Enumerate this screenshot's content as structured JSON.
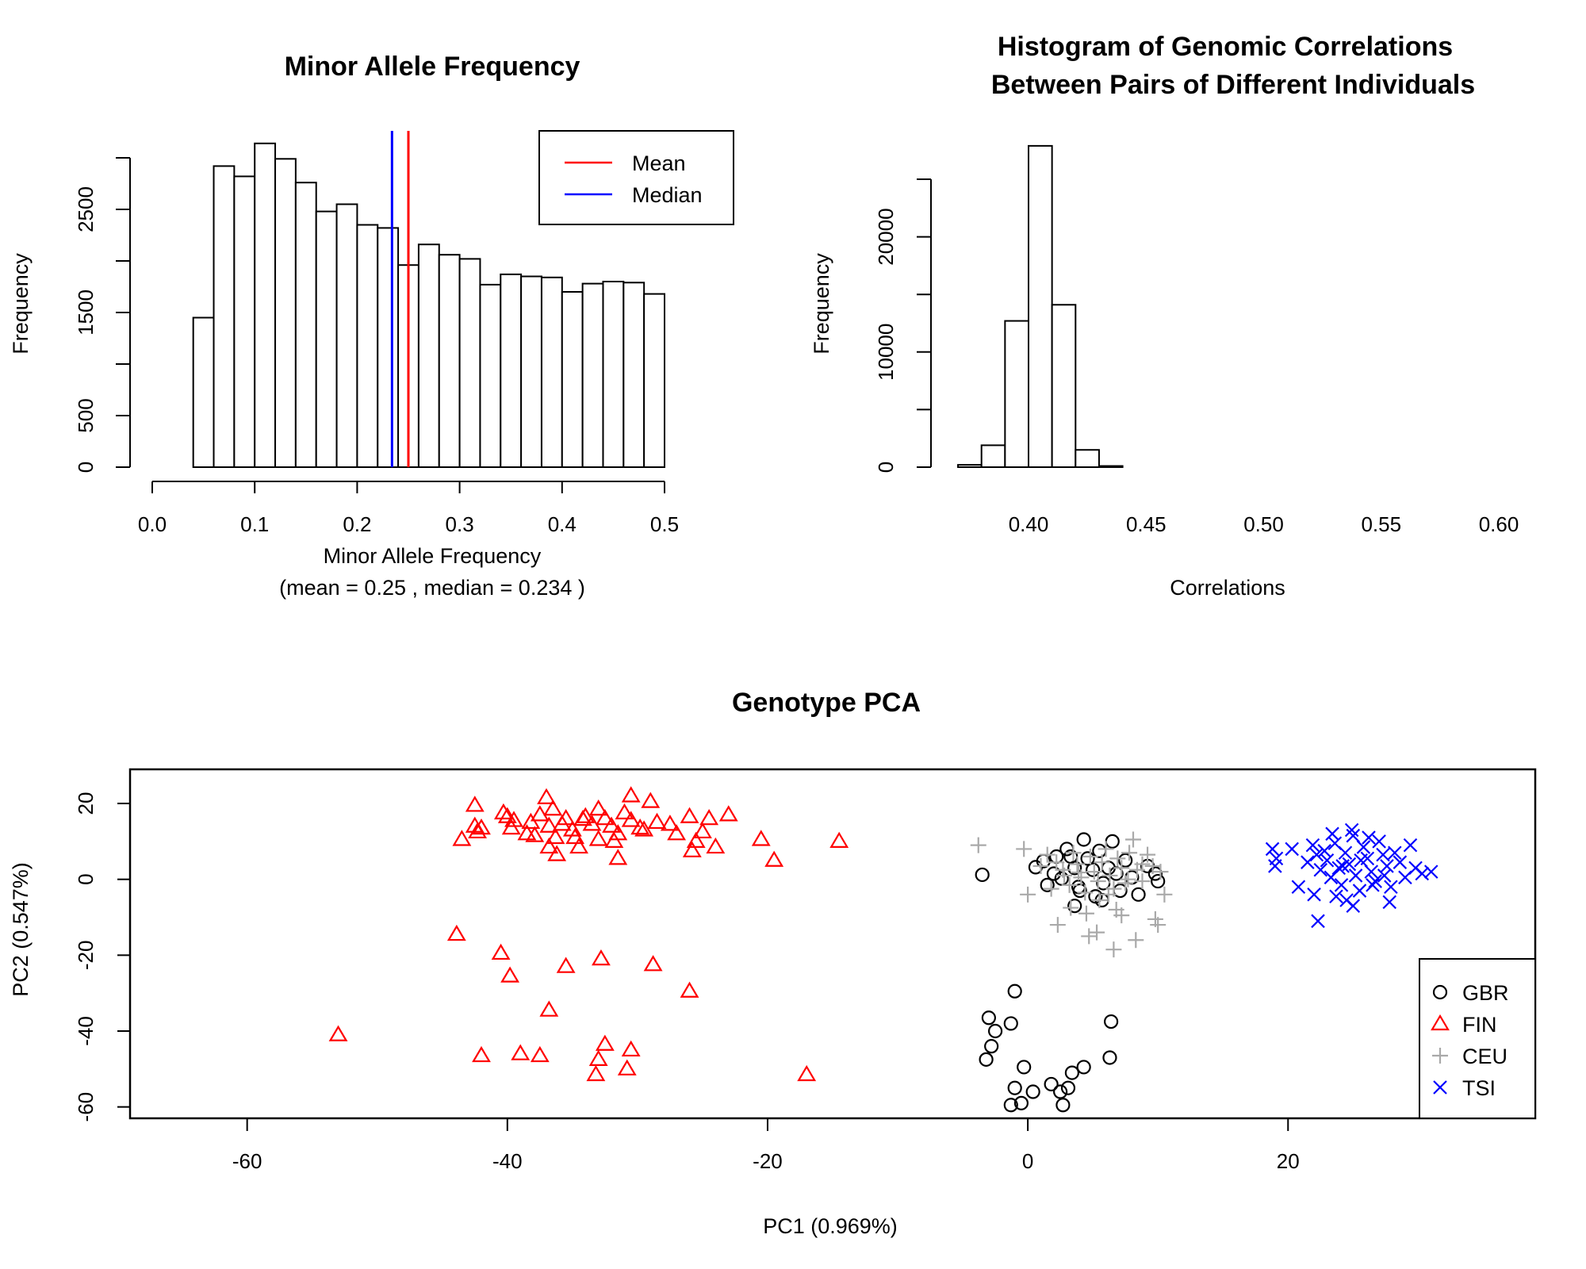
{
  "chart_data": [
    {
      "type": "bar",
      "title": "Minor Allele Frequency",
      "xlabel": "Minor Allele Frequency",
      "subtitle": "(mean =  0.25 , median =  0.234 )",
      "ylabel": "Frequency",
      "bin_edges": [
        0.04,
        0.06,
        0.08,
        0.1,
        0.12,
        0.14,
        0.16,
        0.18,
        0.2,
        0.22,
        0.24,
        0.26,
        0.28,
        0.3,
        0.32,
        0.34,
        0.36,
        0.38,
        0.4,
        0.42,
        0.44,
        0.46,
        0.48,
        0.5
      ],
      "values": [
        1450,
        2920,
        2820,
        3140,
        2990,
        2760,
        2480,
        2550,
        2350,
        2320,
        1960,
        2160,
        2060,
        2020,
        1770,
        1870,
        1850,
        1840,
        1700,
        1780,
        1800,
        1790,
        1680
      ],
      "xlim": [
        0,
        0.5
      ],
      "ylim": [
        0,
        3150
      ],
      "xticks": [
        "0.0",
        "0.1",
        "0.2",
        "0.3",
        "0.4",
        "0.5"
      ],
      "yticks": [
        "0",
        "500",
        "1500",
        "2500"
      ],
      "mean": 0.25,
      "median": 0.234,
      "legend": [
        {
          "label": "Mean",
          "color": "#ff0000"
        },
        {
          "label": "Median",
          "color": "#0000ff"
        }
      ],
      "legend_position": "top-right"
    },
    {
      "type": "bar",
      "title": "Histogram of Genomic Correlations",
      "subtitle": "Between Pairs of Different Individuals",
      "xlabel": "Correlations",
      "ylabel": "Frequency",
      "bin_edges": [
        0.37,
        0.38,
        0.39,
        0.4,
        0.41,
        0.42,
        0.43,
        0.44,
        0.45,
        0.46,
        0.47,
        0.48,
        0.49,
        0.5,
        0.51,
        0.52,
        0.53,
        0.54,
        0.55,
        0.56,
        0.57,
        0.58,
        0.59,
        0.6,
        0.61
      ],
      "values": [
        200,
        1900,
        12700,
        27900,
        14100,
        1500,
        100,
        0,
        0,
        0,
        0,
        0,
        0,
        0,
        0,
        0,
        0,
        0,
        0,
        0,
        0,
        0,
        0,
        0
      ],
      "xlim": [
        0.37,
        0.61
      ],
      "ylim": [
        0,
        28000
      ],
      "xticks": [
        "0.40",
        "0.45",
        "0.50",
        "0.55",
        "0.60"
      ],
      "yticks": [
        "0",
        "10000",
        "20000"
      ]
    },
    {
      "type": "scatter",
      "title": "Genotype PCA",
      "xlabel": "PC1 (0.969%)",
      "ylabel": "PC2 (0.547%)",
      "xlim": [
        -69,
        39
      ],
      "ylim": [
        -63,
        29
      ],
      "xticks": [
        "-60",
        "-40",
        "-20",
        "0",
        "20"
      ],
      "yticks": [
        "-60",
        "-40",
        "-20",
        "0",
        "20"
      ],
      "grid": false,
      "legend_position": "bottom-right",
      "series": [
        {
          "name": "GBR",
          "marker": "circle",
          "color": "#000000",
          "points": [
            [
              -3.5,
              1.2
            ],
            [
              0.6,
              3.2
            ],
            [
              1.2,
              4.8
            ],
            [
              2.0,
              1.5
            ],
            [
              2.6,
              0.2
            ],
            [
              3.0,
              8.0
            ],
            [
              3.3,
              6.0
            ],
            [
              3.6,
              3.0
            ],
            [
              3.9,
              -2.0
            ],
            [
              4.3,
              10.5
            ],
            [
              4.6,
              5.5
            ],
            [
              5.0,
              2.5
            ],
            [
              5.2,
              -4.5
            ],
            [
              5.5,
              7.5
            ],
            [
              5.8,
              -1.0
            ],
            [
              6.2,
              3.0
            ],
            [
              6.5,
              10.0
            ],
            [
              6.8,
              1.5
            ],
            [
              7.1,
              -3.0
            ],
            [
              7.5,
              5.0
            ],
            [
              8.0,
              0.5
            ],
            [
              8.5,
              -4.0
            ],
            [
              9.2,
              3.5
            ],
            [
              9.8,
              1.5
            ],
            [
              10.0,
              -0.5
            ],
            [
              3.6,
              -7.0
            ],
            [
              2.2,
              6.0
            ],
            [
              4.0,
              -3.0
            ],
            [
              5.7,
              -5.5
            ],
            [
              1.5,
              -1.5
            ],
            [
              -1.0,
              -29.5
            ],
            [
              -3.0,
              -36.5
            ],
            [
              -1.3,
              -38.0
            ],
            [
              -2.5,
              -40.0
            ],
            [
              -2.8,
              -44.0
            ],
            [
              -3.2,
              -47.5
            ],
            [
              -0.3,
              -49.5
            ],
            [
              6.3,
              -47.0
            ],
            [
              6.4,
              -37.5
            ],
            [
              4.3,
              -49.5
            ],
            [
              3.4,
              -51.0
            ],
            [
              1.8,
              -54.0
            ],
            [
              2.5,
              -56.0
            ],
            [
              0.4,
              -56.0
            ],
            [
              -1.0,
              -55.0
            ],
            [
              3.1,
              -55.0
            ],
            [
              -0.5,
              -59.0
            ],
            [
              -1.3,
              -59.5
            ],
            [
              2.7,
              -59.5
            ]
          ]
        },
        {
          "name": "FIN",
          "marker": "triangle",
          "color": "#ff0000",
          "points": [
            [
              -43.5,
              10.5
            ],
            [
              -42.5,
              19.5
            ],
            [
              -42.5,
              14.0
            ],
            [
              -42.3,
              12.5
            ],
            [
              -42.0,
              13.5
            ],
            [
              -40.3,
              17.5
            ],
            [
              -40.0,
              16.5
            ],
            [
              -39.5,
              15.5
            ],
            [
              -39.7,
              13.5
            ],
            [
              -38.2,
              15.0
            ],
            [
              -37.9,
              11.5
            ],
            [
              -37.5,
              17.0
            ],
            [
              -37.0,
              21.5
            ],
            [
              -36.8,
              14.0
            ],
            [
              -36.5,
              18.5
            ],
            [
              -36.3,
              11.0
            ],
            [
              -36.2,
              6.5
            ],
            [
              -35.8,
              14.5
            ],
            [
              -35.5,
              16.0
            ],
            [
              -35.0,
              13.0
            ],
            [
              -34.8,
              11.0
            ],
            [
              -34.5,
              8.5
            ],
            [
              -34.0,
              16.5
            ],
            [
              -33.5,
              14.5
            ],
            [
              -33.0,
              18.5
            ],
            [
              -32.5,
              16.0
            ],
            [
              -32.0,
              14.0
            ],
            [
              -31.8,
              10.0
            ],
            [
              -31.5,
              12.0
            ],
            [
              -31.5,
              5.5
            ],
            [
              -31.0,
              17.5
            ],
            [
              -30.5,
              22.0
            ],
            [
              -30.5,
              15.5
            ],
            [
              -29.8,
              13.5
            ],
            [
              -29.5,
              13.0
            ],
            [
              -29.0,
              20.5
            ],
            [
              -28.5,
              15.0
            ],
            [
              -27.5,
              14.5
            ],
            [
              -27.0,
              12.0
            ],
            [
              -26.0,
              16.5
            ],
            [
              -25.8,
              7.5
            ],
            [
              -25.5,
              10.0
            ],
            [
              -25.0,
              12.5
            ],
            [
              -24.5,
              16.0
            ],
            [
              -24.0,
              8.5
            ],
            [
              -23.0,
              17.0
            ],
            [
              -20.5,
              10.5
            ],
            [
              -19.5,
              5.0
            ],
            [
              -14.5,
              10.0
            ],
            [
              -36.8,
              8.5
            ],
            [
              -33.0,
              10.5
            ],
            [
              -38.5,
              12.0
            ],
            [
              -34.2,
              15.8
            ],
            [
              -43.9,
              -14.5
            ],
            [
              -40.5,
              -19.5
            ],
            [
              -39.8,
              -25.5
            ],
            [
              -35.5,
              -23.0
            ],
            [
              -32.8,
              -21.0
            ],
            [
              -28.8,
              -22.5
            ],
            [
              -26.0,
              -29.5
            ],
            [
              -36.8,
              -34.5
            ],
            [
              -53.0,
              -41.0
            ],
            [
              -42.0,
              -46.5
            ],
            [
              -39.0,
              -46.0
            ],
            [
              -37.5,
              -46.5
            ],
            [
              -32.5,
              -43.5
            ],
            [
              -30.5,
              -45.0
            ],
            [
              -33.0,
              -47.5
            ],
            [
              -33.2,
              -51.5
            ],
            [
              -30.8,
              -50.0
            ],
            [
              -17.0,
              -51.5
            ]
          ]
        },
        {
          "name": "CEU",
          "marker": "plus",
          "color": "#a9a9a9",
          "points": [
            [
              -3.8,
              9.0
            ],
            [
              -0.3,
              8.0
            ],
            [
              1.0,
              3.5
            ],
            [
              1.5,
              6.5
            ],
            [
              2.2,
              4.5
            ],
            [
              2.8,
              1.0
            ],
            [
              3.2,
              -1.5
            ],
            [
              3.5,
              7.0
            ],
            [
              3.8,
              4.0
            ],
            [
              4.1,
              0.5
            ],
            [
              4.4,
              -3.5
            ],
            [
              4.8,
              6.0
            ],
            [
              5.1,
              2.0
            ],
            [
              5.4,
              -0.5
            ],
            [
              5.7,
              4.5
            ],
            [
              6.0,
              8.0
            ],
            [
              6.3,
              1.0
            ],
            [
              6.6,
              -2.5
            ],
            [
              6.9,
              5.5
            ],
            [
              7.2,
              3.0
            ],
            [
              7.5,
              -1.0
            ],
            [
              7.8,
              7.0
            ],
            [
              8.1,
              10.5
            ],
            [
              8.4,
              2.5
            ],
            [
              8.8,
              -0.5
            ],
            [
              9.2,
              6.5
            ],
            [
              9.6,
              3.5
            ],
            [
              10.2,
              2.0
            ],
            [
              10.5,
              -4.0
            ],
            [
              9.8,
              -10.5
            ],
            [
              8.3,
              -16.0
            ],
            [
              6.6,
              -18.5
            ],
            [
              5.3,
              -14.0
            ],
            [
              4.5,
              -9.0
            ],
            [
              3.3,
              -7.5
            ],
            [
              2.3,
              -12.0
            ],
            [
              0.0,
              -4.0
            ],
            [
              4.7,
              -15.0
            ],
            [
              6.8,
              -8.0
            ],
            [
              7.2,
              -9.5
            ],
            [
              10.0,
              -12.0
            ],
            [
              1.8,
              -2.5
            ],
            [
              2.7,
              2.5
            ],
            [
              3.9,
              1.8
            ],
            [
              5.5,
              -5.5
            ],
            [
              6.2,
              -4.0
            ],
            [
              7.7,
              0.0
            ],
            [
              8.8,
              4.0
            ]
          ]
        },
        {
          "name": "TSI",
          "marker": "cross",
          "color": "#0000ff",
          "points": [
            [
              18.8,
              8.0
            ],
            [
              19.1,
              5.5
            ],
            [
              19.0,
              3.5
            ],
            [
              20.3,
              8.0
            ],
            [
              21.5,
              4.5
            ],
            [
              21.9,
              9.0
            ],
            [
              22.2,
              6.5
            ],
            [
              22.5,
              2.5
            ],
            [
              22.8,
              7.5
            ],
            [
              23.0,
              5.0
            ],
            [
              23.3,
              0.5
            ],
            [
              23.6,
              9.5
            ],
            [
              23.9,
              3.0
            ],
            [
              24.1,
              -1.5
            ],
            [
              24.4,
              7.0
            ],
            [
              24.7,
              4.0
            ],
            [
              25.0,
              11.5
            ],
            [
              25.2,
              1.0
            ],
            [
              25.5,
              -3.0
            ],
            [
              25.8,
              8.5
            ],
            [
              26.1,
              5.5
            ],
            [
              26.4,
              2.0
            ],
            [
              26.7,
              -0.5
            ],
            [
              27.0,
              10.0
            ],
            [
              27.3,
              6.5
            ],
            [
              27.6,
              3.5
            ],
            [
              27.9,
              -2.0
            ],
            [
              28.2,
              7.0
            ],
            [
              28.6,
              4.5
            ],
            [
              29.0,
              0.5
            ],
            [
              29.4,
              9.0
            ],
            [
              29.8,
              3.0
            ],
            [
              30.3,
              1.5
            ],
            [
              31.0,
              2.0
            ],
            [
              27.8,
              -6.0
            ],
            [
              25.0,
              -7.0
            ],
            [
              24.5,
              -5.5
            ],
            [
              22.0,
              -4.0
            ],
            [
              20.8,
              -2.0
            ],
            [
              22.3,
              -11.0
            ],
            [
              23.4,
              12.0
            ],
            [
              24.9,
              13.0
            ],
            [
              26.2,
              11.0
            ],
            [
              25.6,
              5.0
            ],
            [
              24.2,
              3.5
            ],
            [
              23.7,
              -4.5
            ],
            [
              26.5,
              -1.5
            ],
            [
              27.4,
              1.0
            ]
          ]
        }
      ]
    }
  ]
}
